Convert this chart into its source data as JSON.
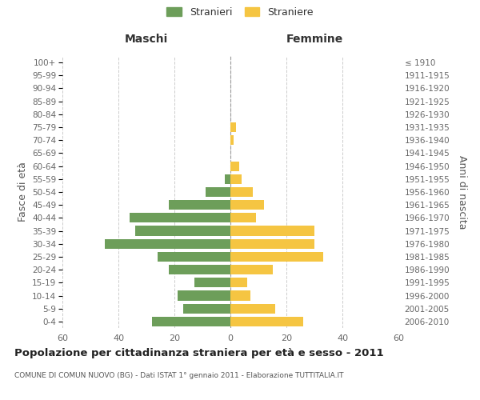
{
  "age_groups": [
    "0-4",
    "5-9",
    "10-14",
    "15-19",
    "20-24",
    "25-29",
    "30-34",
    "35-39",
    "40-44",
    "45-49",
    "50-54",
    "55-59",
    "60-64",
    "65-69",
    "70-74",
    "75-79",
    "80-84",
    "85-89",
    "90-94",
    "95-99",
    "100+"
  ],
  "birth_years": [
    "2006-2010",
    "2001-2005",
    "1996-2000",
    "1991-1995",
    "1986-1990",
    "1981-1985",
    "1976-1980",
    "1971-1975",
    "1966-1970",
    "1961-1965",
    "1956-1960",
    "1951-1955",
    "1946-1950",
    "1941-1945",
    "1936-1940",
    "1931-1935",
    "1926-1930",
    "1921-1925",
    "1916-1920",
    "1911-1915",
    "≤ 1910"
  ],
  "maschi": [
    28,
    17,
    19,
    13,
    22,
    26,
    45,
    34,
    36,
    22,
    9,
    2,
    0,
    0,
    0,
    0,
    0,
    0,
    0,
    0,
    0
  ],
  "femmine": [
    26,
    16,
    7,
    6,
    15,
    33,
    30,
    30,
    9,
    12,
    8,
    4,
    3,
    0,
    1,
    2,
    0,
    0,
    0,
    0,
    0
  ],
  "color_maschi": "#6d9e5a",
  "color_femmine": "#f5c542",
  "title": "Popolazione per cittadinanza straniera per età e sesso - 2011",
  "subtitle": "COMUNE DI COMUN NUOVO (BG) - Dati ISTAT 1° gennaio 2011 - Elaborazione TUTTITALIA.IT",
  "ylabel_left": "Fasce di età",
  "ylabel_right": "Anni di nascita",
  "xlabel_left": "Maschi",
  "xlabel_right": "Femmine",
  "legend_maschi": "Stranieri",
  "legend_femmine": "Straniere",
  "xlim": 60,
  "background_color": "#ffffff",
  "grid_color": "#cccccc"
}
